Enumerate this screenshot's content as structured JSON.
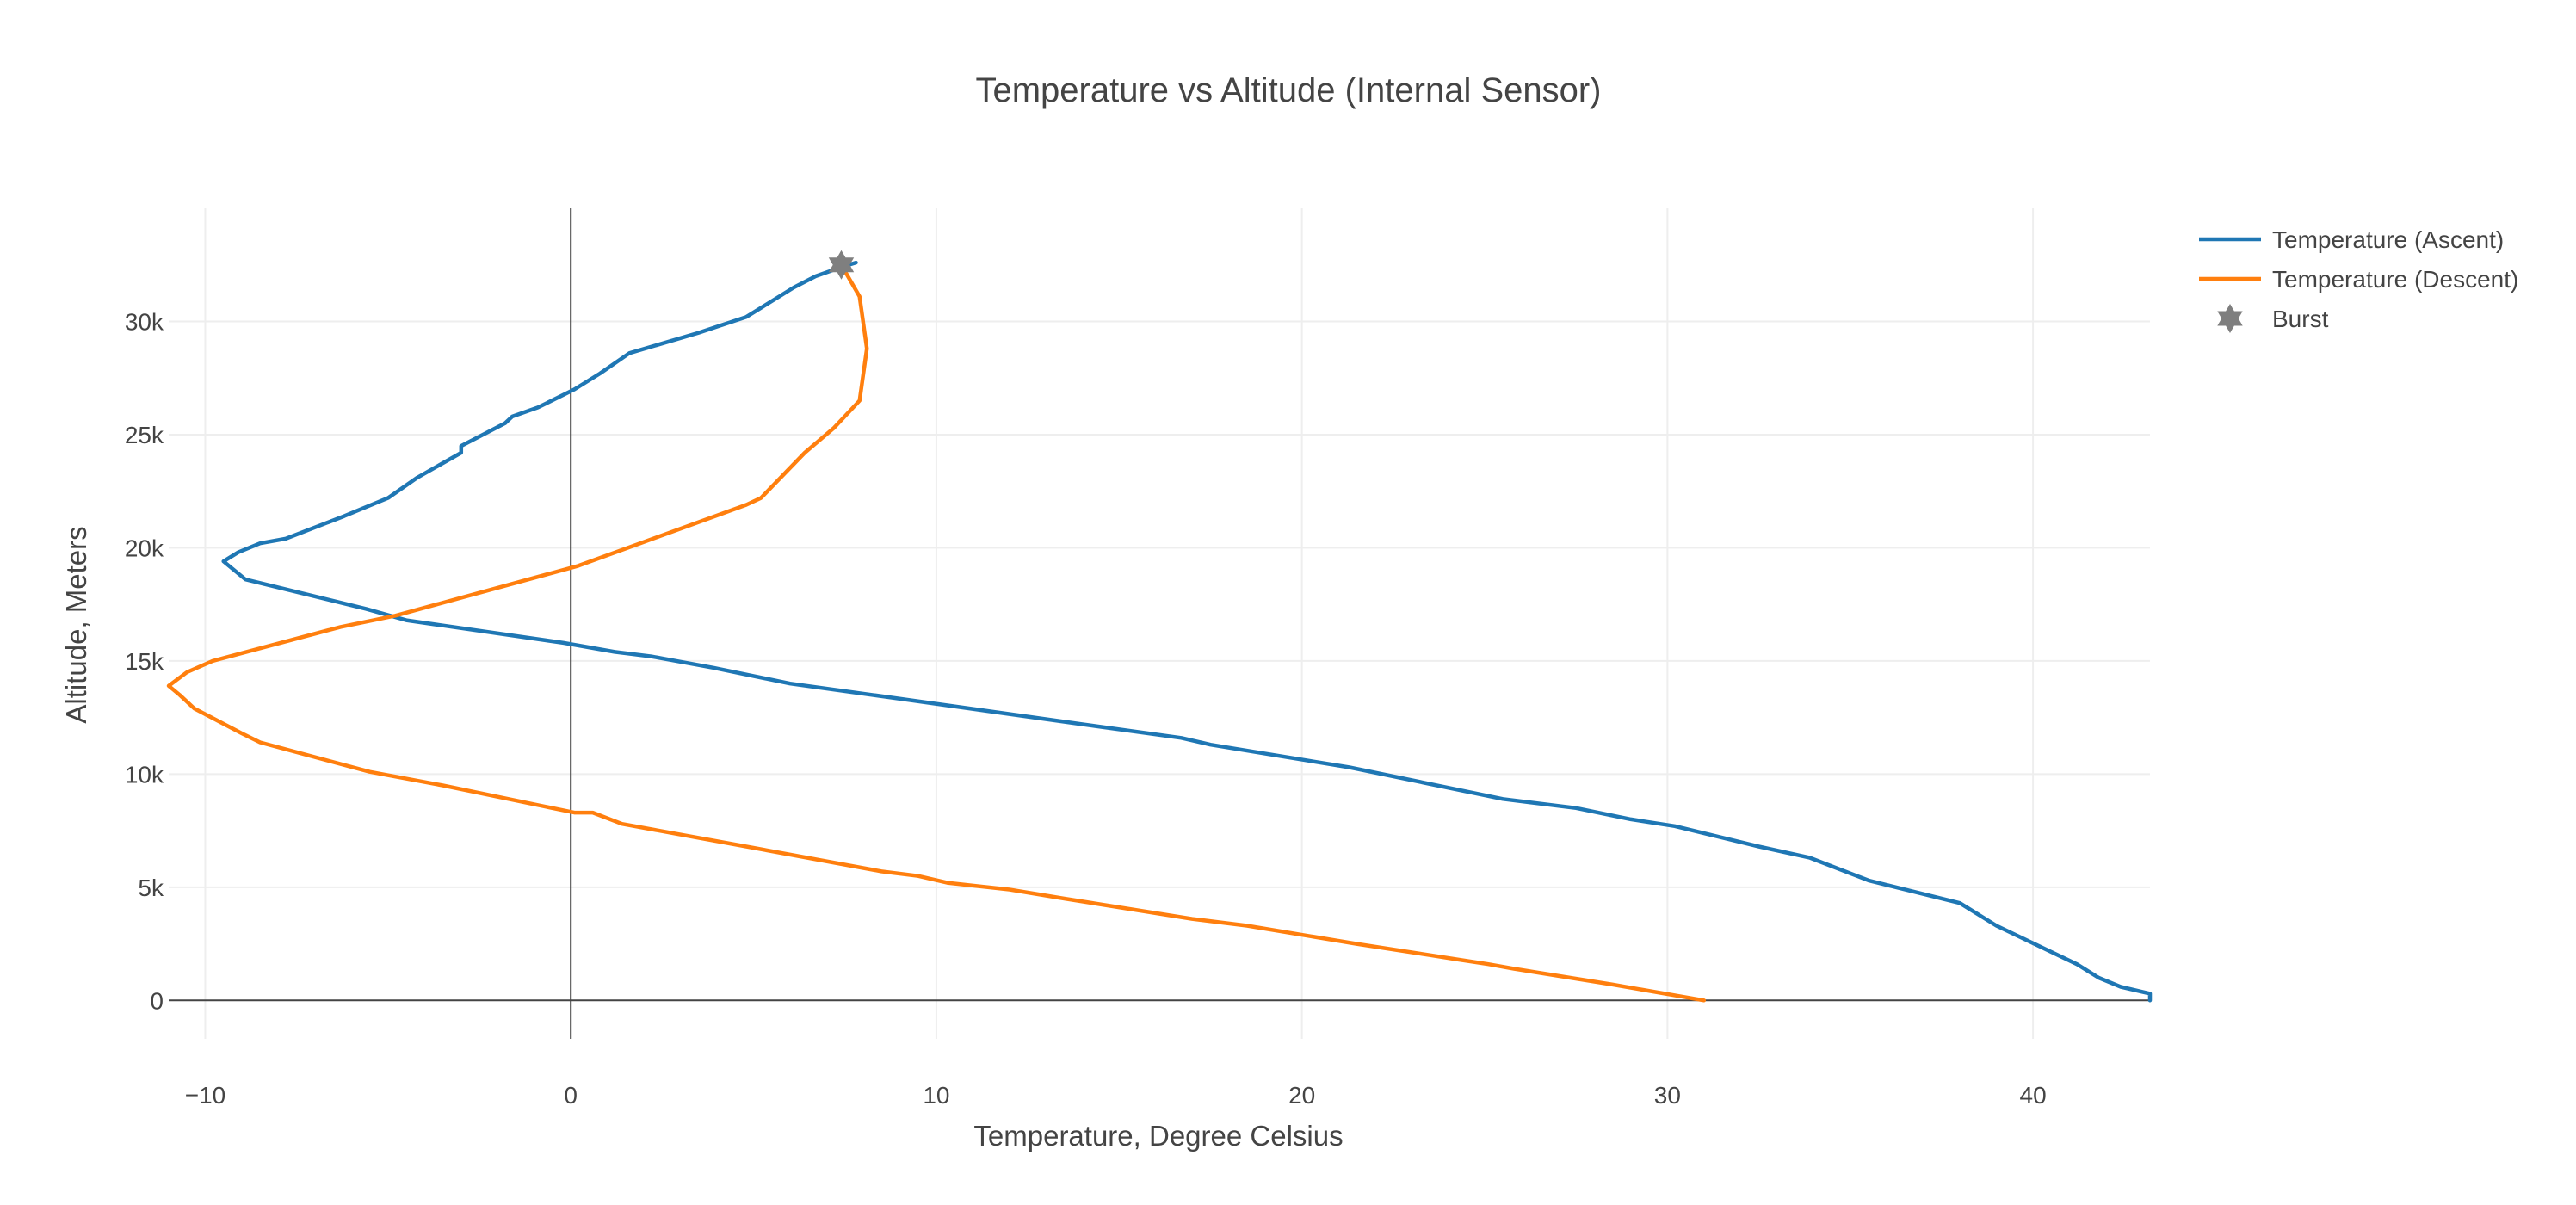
{
  "chart_data": {
    "type": "line",
    "title": "Temperature vs Altitude (Internal Sensor)",
    "xlabel": "Temperature, Degree Celsius",
    "ylabel": "Altitude, Meters",
    "xlim": [
      -11,
      43.2
    ],
    "ylim": [
      -1700,
      35000
    ],
    "x_ticks": [
      -10,
      0,
      10,
      20,
      30,
      40
    ],
    "x_tick_labels": [
      "−10",
      "0",
      "10",
      "20",
      "30",
      "40"
    ],
    "y_ticks": [
      0,
      5000,
      10000,
      15000,
      20000,
      25000,
      30000
    ],
    "y_tick_labels": [
      "0",
      "5k",
      "10k",
      "15k",
      "20k",
      "25k",
      "30k"
    ],
    "grid": true,
    "legend_position": "top-right",
    "series": [
      {
        "name": "Temperature (Ascent)",
        "color": "#1f77b4",
        "points": [
          [
            43.2,
            0
          ],
          [
            43.2,
            300
          ],
          [
            42.4,
            600
          ],
          [
            41.8,
            1000
          ],
          [
            41.2,
            1600
          ],
          [
            39.0,
            3300
          ],
          [
            38.0,
            4300
          ],
          [
            35.5,
            5300
          ],
          [
            33.9,
            6300
          ],
          [
            32.5,
            6800
          ],
          [
            30.2,
            7700
          ],
          [
            29.0,
            8000
          ],
          [
            27.5,
            8500
          ],
          [
            25.5,
            8900
          ],
          [
            21.3,
            10300
          ],
          [
            17.5,
            11300
          ],
          [
            16.7,
            11600
          ],
          [
            14.0,
            12200
          ],
          [
            8.7,
            13400
          ],
          [
            6.0,
            14000
          ],
          [
            3.9,
            14700
          ],
          [
            2.2,
            15200
          ],
          [
            1.2,
            15400
          ],
          [
            -0.2,
            15800
          ],
          [
            -4.5,
            16800
          ],
          [
            -5.6,
            17300
          ],
          [
            -8.9,
            18600
          ],
          [
            -9.5,
            19400
          ],
          [
            -9.1,
            19800
          ],
          [
            -8.5,
            20200
          ],
          [
            -7.8,
            20400
          ],
          [
            -6.2,
            21400
          ],
          [
            -5.0,
            22200
          ],
          [
            -4.2,
            23100
          ],
          [
            -3.0,
            24200
          ],
          [
            -3.0,
            24500
          ],
          [
            -1.8,
            25500
          ],
          [
            -1.6,
            25800
          ],
          [
            -0.9,
            26200
          ],
          [
            0.1,
            27000
          ],
          [
            0.8,
            27700
          ],
          [
            1.6,
            28600
          ],
          [
            3.5,
            29500
          ],
          [
            4.8,
            30200
          ],
          [
            5.2,
            30600
          ],
          [
            6.1,
            31500
          ],
          [
            6.7,
            32000
          ],
          [
            7.4,
            32400
          ],
          [
            7.8,
            32600
          ]
        ]
      },
      {
        "name": "Temperature (Descent)",
        "color": "#ff7f0e",
        "points": [
          [
            7.4,
            32500
          ],
          [
            7.9,
            31100
          ],
          [
            8.1,
            28800
          ],
          [
            7.9,
            26500
          ],
          [
            7.2,
            25300
          ],
          [
            6.4,
            24200
          ],
          [
            5.2,
            22200
          ],
          [
            4.8,
            21900
          ],
          [
            0.2,
            19200
          ],
          [
            -4.8,
            17000
          ],
          [
            -6.3,
            16500
          ],
          [
            -9.8,
            15000
          ],
          [
            -10.5,
            14500
          ],
          [
            -11.0,
            13900
          ],
          [
            -10.7,
            13500
          ],
          [
            -10.3,
            12900
          ],
          [
            -9.0,
            11800
          ],
          [
            -8.5,
            11400
          ],
          [
            -5.5,
            10100
          ],
          [
            -3.5,
            9500
          ],
          [
            0.1,
            8300
          ],
          [
            0.6,
            8300
          ],
          [
            1.4,
            7800
          ],
          [
            4.8,
            6800
          ],
          [
            8.5,
            5700
          ],
          [
            9.5,
            5500
          ],
          [
            10.3,
            5200
          ],
          [
            12.0,
            4900
          ],
          [
            13.5,
            4500
          ],
          [
            17.0,
            3600
          ],
          [
            18.5,
            3300
          ],
          [
            21.5,
            2500
          ],
          [
            23.5,
            2000
          ],
          [
            24.3,
            1800
          ],
          [
            25.1,
            1600
          ],
          [
            25.8,
            1400
          ],
          [
            28.5,
            700
          ],
          [
            31.0,
            0
          ]
        ]
      },
      {
        "name": "Burst",
        "type": "scatter",
        "marker": "hexagram",
        "color": "#7f7f7f",
        "points": [
          [
            7.4,
            32500
          ]
        ]
      }
    ]
  }
}
